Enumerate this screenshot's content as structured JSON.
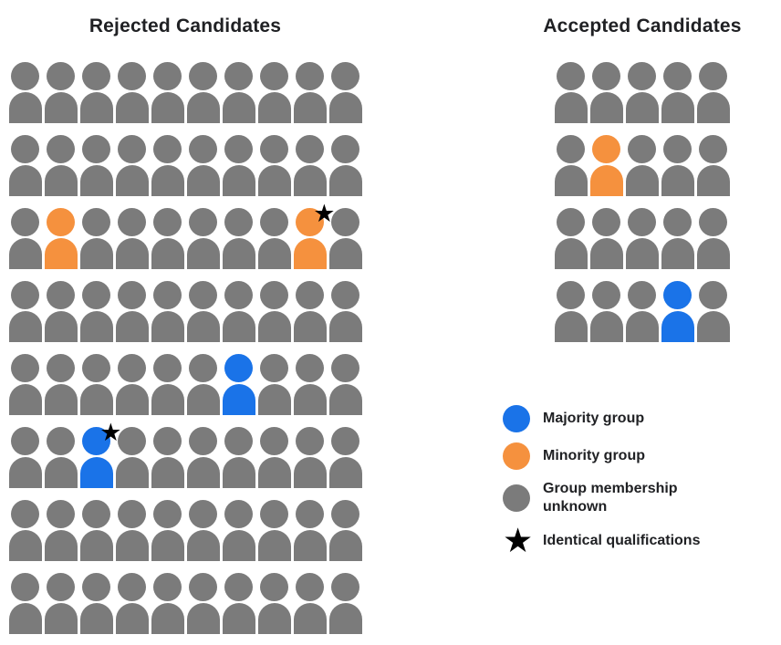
{
  "colors": {
    "majority": "#1a73e8",
    "minority": "#f5913e",
    "unknown": "#7b7b7b",
    "star": "#000000"
  },
  "rejected": {
    "title": "Rejected Candidates",
    "rows": 8,
    "columns": 10,
    "default_group": "unknown",
    "special_people": [
      {
        "row": 3,
        "col": 2,
        "group": "minority",
        "star": false
      },
      {
        "row": 3,
        "col": 9,
        "group": "minority",
        "star": true
      },
      {
        "row": 5,
        "col": 7,
        "group": "majority",
        "star": false
      },
      {
        "row": 6,
        "col": 3,
        "group": "majority",
        "star": true
      }
    ]
  },
  "accepted": {
    "title": "Accepted Candidates",
    "rows": 4,
    "columns": 5,
    "default_group": "unknown",
    "special_people": [
      {
        "row": 2,
        "col": 2,
        "group": "minority",
        "star": false
      },
      {
        "row": 4,
        "col": 4,
        "group": "majority",
        "star": false
      }
    ]
  },
  "legend": [
    {
      "type": "majority",
      "shape": "circle",
      "label": "Majority group"
    },
    {
      "type": "minority",
      "shape": "circle",
      "label": "Minority group"
    },
    {
      "type": "unknown",
      "shape": "circle",
      "label": "Group membership unknown"
    },
    {
      "type": "star",
      "shape": "star",
      "label": "Identical qualifications"
    }
  ]
}
